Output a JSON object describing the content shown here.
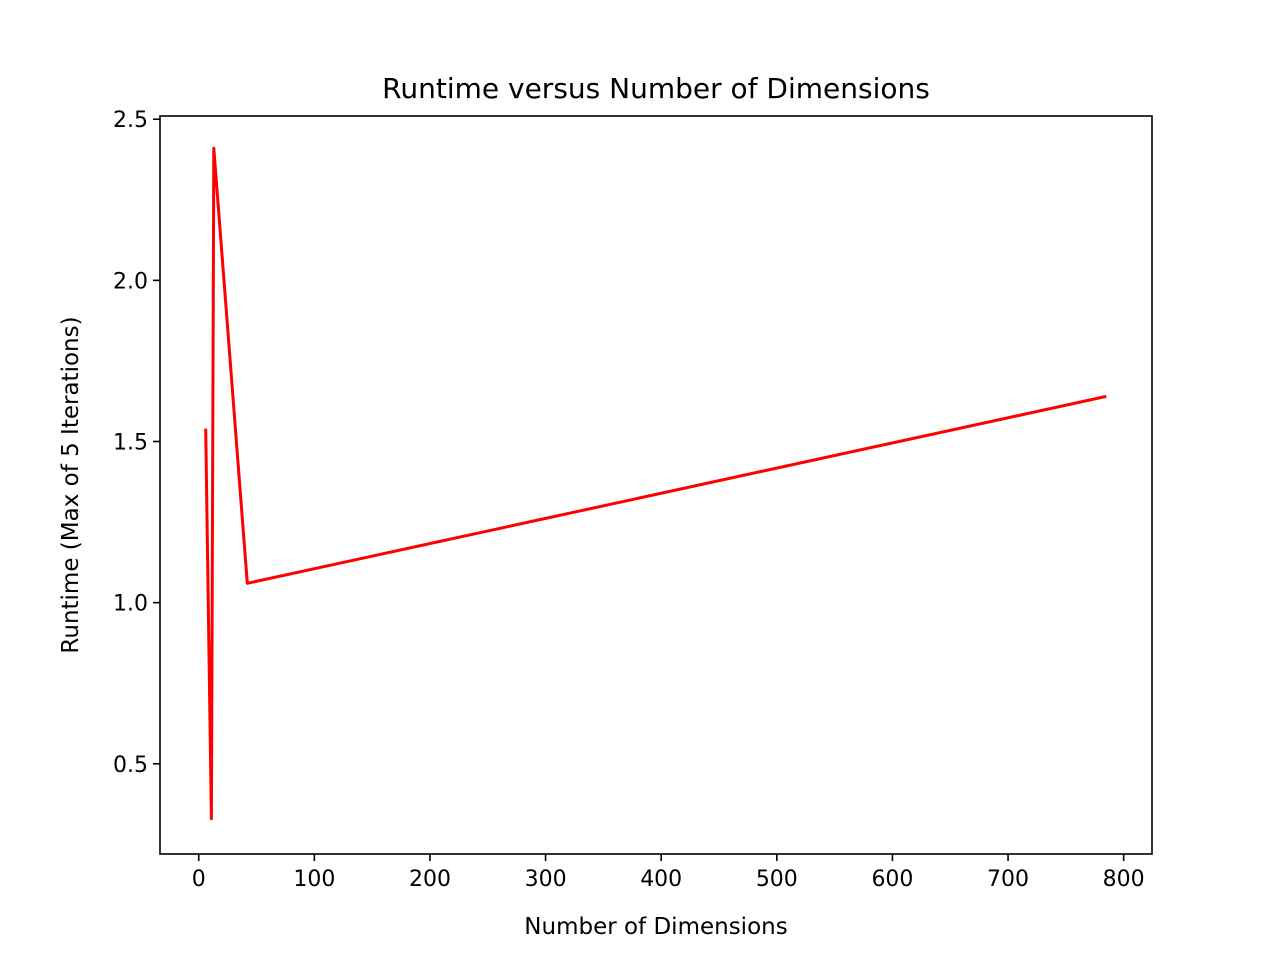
{
  "chart_data": {
    "type": "line",
    "title": "Runtime versus Number of Dimensions",
    "xlabel": "Number of Dimensions",
    "ylabel": "Runtime (Max of 5 Iterations)",
    "xlim": [
      -33.5,
      824.5
    ],
    "ylim": [
      0.22,
      2.51
    ],
    "xticks": [
      0,
      100,
      200,
      300,
      400,
      500,
      600,
      700,
      800
    ],
    "yticks": [
      0.5,
      1.0,
      1.5,
      2.0,
      2.5
    ],
    "xtick_labels": [
      "0",
      "100",
      "200",
      "300",
      "400",
      "500",
      "600",
      "700",
      "800"
    ],
    "ytick_labels": [
      "0.5",
      "1.0",
      "1.5",
      "2.0",
      "2.5"
    ],
    "grid": false,
    "legend": null,
    "series": [
      {
        "color": "#ff0000",
        "x": [
          6,
          11,
          13,
          42,
          785
        ],
        "y": [
          1.54,
          0.33,
          2.41,
          1.06,
          1.64
        ]
      }
    ]
  }
}
